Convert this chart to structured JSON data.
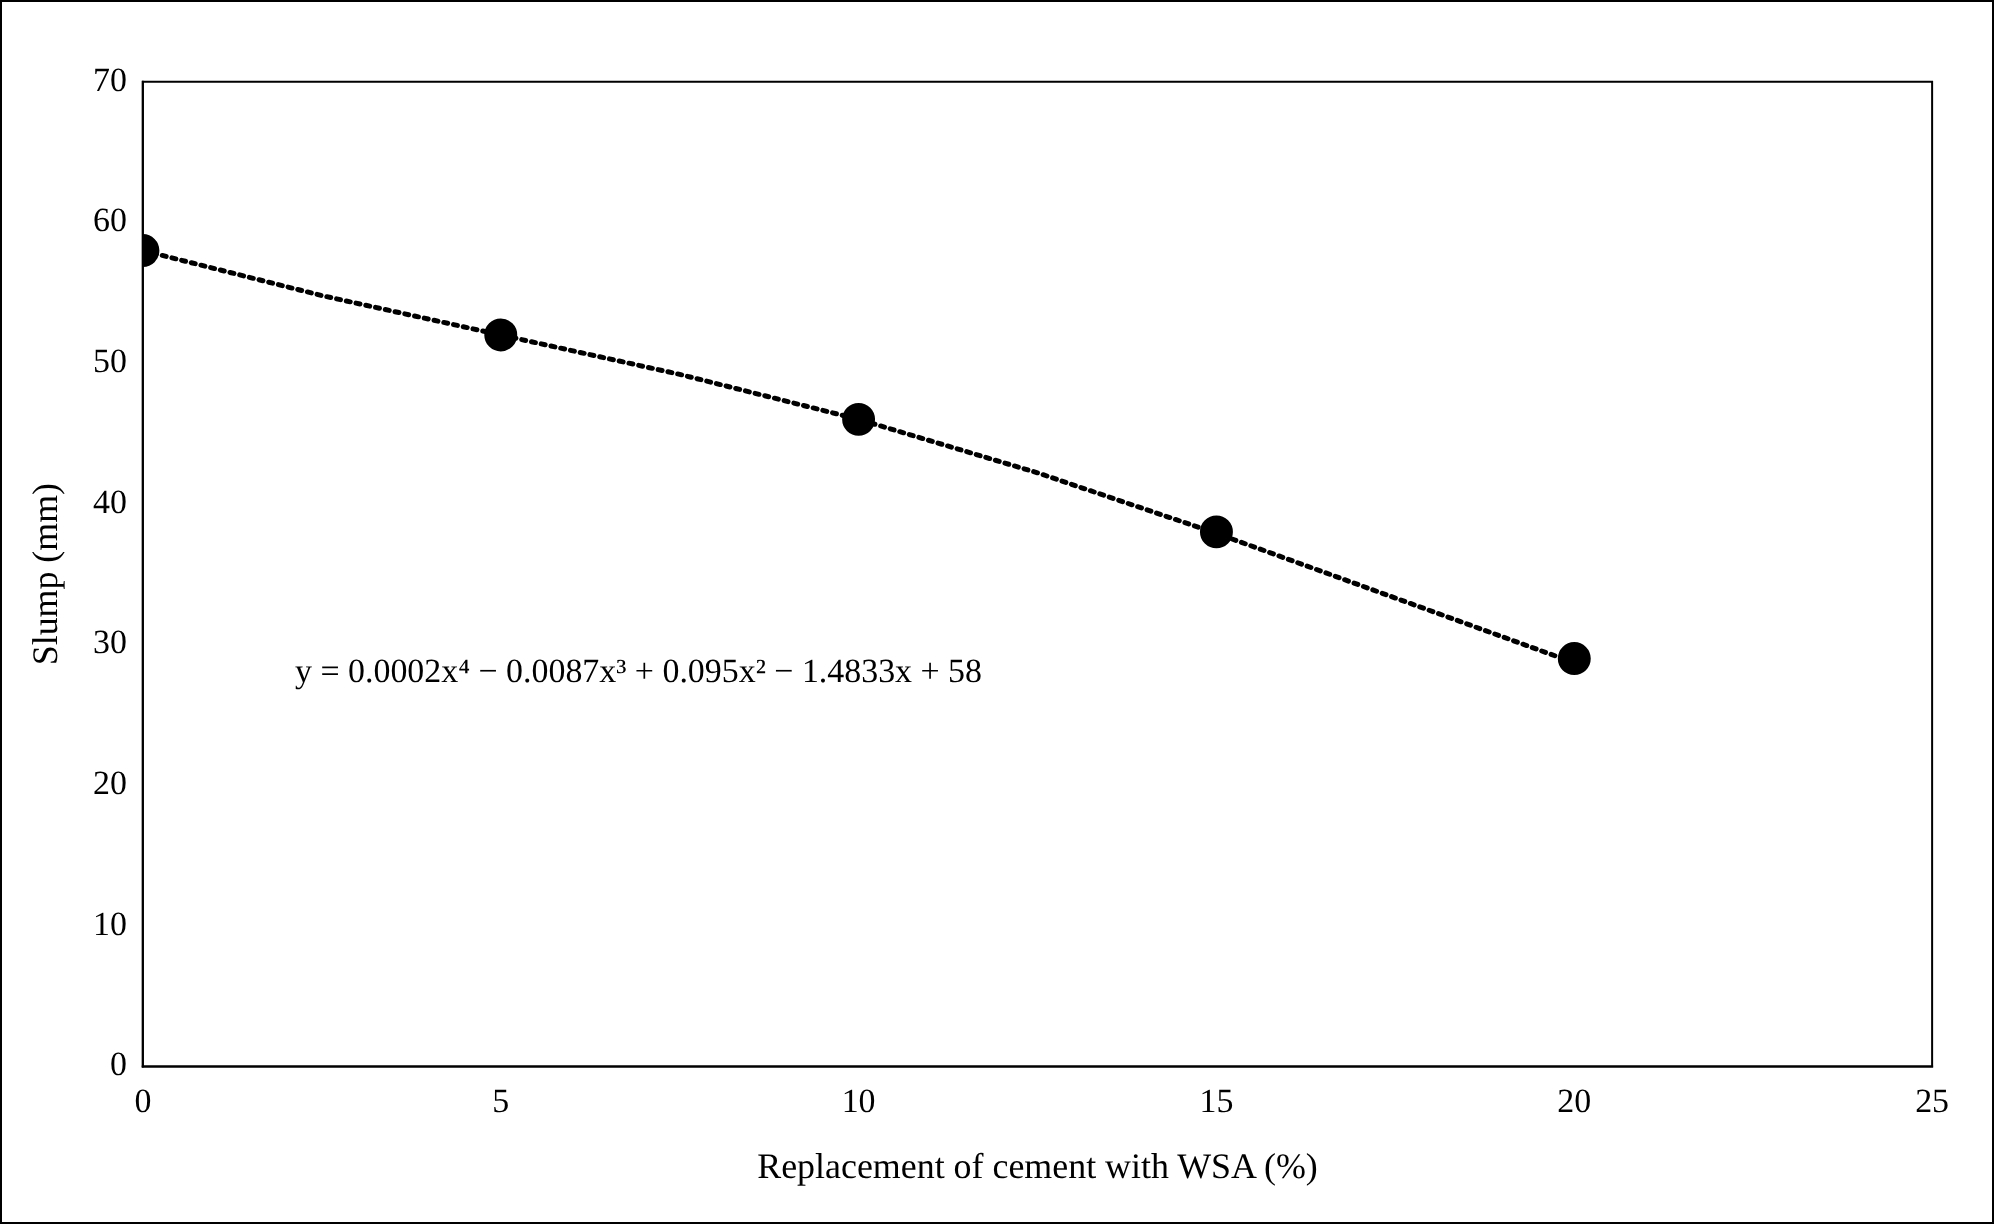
{
  "chart_data": {
    "type": "scatter",
    "xlabel": "Replacement of cement with WSA (%)",
    "ylabel": "Slump (mm)",
    "xlim": [
      0,
      25
    ],
    "xticks": [
      0,
      5,
      10,
      15,
      20,
      25
    ],
    "ylim": [
      0,
      70
    ],
    "yticks": [
      0,
      10,
      20,
      30,
      40,
      50,
      60,
      70
    ],
    "grid": false,
    "legend": false,
    "marker": "circle",
    "series": [
      {
        "color": "#000000",
        "x": [
          0,
          5,
          10,
          15,
          20
        ],
        "values": [
          58,
          52,
          46,
          38,
          29
        ]
      },
      {
        "type": "line",
        "color": "#000000",
        "line_style": "dotted",
        "marker": "none",
        "x": [
          0,
          2.5,
          5,
          7.5,
          10,
          12.5,
          15,
          17.5,
          20
        ],
        "values": [
          58,
          54.8,
          52,
          49.2,
          46,
          42.2,
          37.9,
          33.3,
          28.7
        ]
      }
    ],
    "annotations": [
      "y = 0.0002x⁴ − 0.0087x³ + 0.095x² − 1.4833x + 58"
    ]
  }
}
